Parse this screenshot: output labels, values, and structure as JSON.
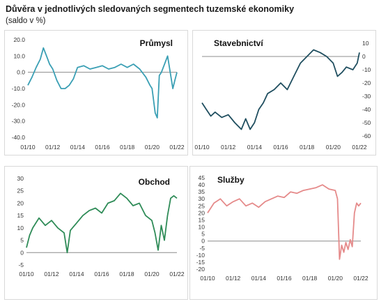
{
  "header": {
    "title": "Důvěra v jednotlivých sledovaných segmentech tuzemské ekonomiky",
    "subtitle": "(saldo v %)"
  },
  "chart_data": [
    {
      "type": "line",
      "title": "Průmysl",
      "color": "#3a9fb4",
      "x_ticks": [
        "01/10",
        "01/12",
        "01/14",
        "01/16",
        "01/18",
        "01/20",
        "01/22"
      ],
      "y_ticks": [
        "20.0",
        "10.0",
        "0.0",
        "-10.0",
        "-20.0",
        "-30.0",
        "-40.0"
      ],
      "ylim": [
        -40,
        20
      ],
      "xlim": [
        2010.0,
        2022.0
      ],
      "series": [
        {
          "x": [
            2010.0,
            2010.33,
            2010.67,
            2011.0,
            2011.25,
            2011.5,
            2011.75,
            2012.0,
            2012.33,
            2012.67,
            2013.0,
            2013.33,
            2013.67,
            2014.0,
            2014.5,
            2015.0,
            2015.5,
            2016.0,
            2016.5,
            2017.0,
            2017.5,
            2018.0,
            2018.5,
            2019.0,
            2019.5,
            2019.83,
            2020.0,
            2020.25,
            2020.42,
            2020.58,
            2020.75,
            2021.0,
            2021.25,
            2021.5,
            2021.67,
            2021.83,
            2022.0
          ],
          "y": [
            -8,
            -3,
            3,
            8,
            15,
            10,
            5,
            2,
            -5,
            -10,
            -10,
            -8,
            -4,
            3,
            4,
            2,
            3,
            4,
            2,
            3,
            5,
            3,
            5,
            2,
            -3,
            -8,
            -10,
            -25,
            -28,
            -2,
            0,
            5,
            10,
            -2,
            -10,
            -5,
            0
          ]
        }
      ]
    },
    {
      "type": "line",
      "title": "Stavebnictví",
      "color": "#1f4e5f",
      "x_ticks": [
        "01/10",
        "01/12",
        "01/14",
        "01/16",
        "01/18",
        "01/20",
        "01/22"
      ],
      "y_ticks": [
        "10",
        "0",
        "-10",
        "-20",
        "-30",
        "-40",
        "-50",
        "-60"
      ],
      "ylim": [
        -60,
        10
      ],
      "xlim": [
        2010.0,
        2022.0
      ],
      "series": [
        {
          "x": [
            2010.0,
            2010.33,
            2010.67,
            2011.0,
            2011.5,
            2012.0,
            2012.5,
            2013.0,
            2013.33,
            2013.67,
            2014.0,
            2014.33,
            2014.67,
            2015.0,
            2015.5,
            2016.0,
            2016.5,
            2017.0,
            2017.5,
            2018.0,
            2018.5,
            2019.0,
            2019.5,
            2020.0,
            2020.33,
            2020.67,
            2021.0,
            2021.5,
            2021.83,
            2022.0
          ],
          "y": [
            -35,
            -40,
            -45,
            -42,
            -46,
            -44,
            -50,
            -55,
            -47,
            -55,
            -50,
            -40,
            -35,
            -28,
            -25,
            -20,
            -25,
            -15,
            -5,
            0,
            5,
            3,
            0,
            -5,
            -15,
            -12,
            -8,
            -10,
            -5,
            3
          ]
        }
      ]
    },
    {
      "type": "line",
      "title": "Obchod",
      "color": "#2e8b57",
      "x_ticks": [
        "01/10",
        "01/12",
        "01/14",
        "01/16",
        "01/18",
        "01/20",
        "01/22"
      ],
      "y_ticks": [
        "30",
        "25",
        "20",
        "15",
        "10",
        "5",
        "0",
        "-5"
      ],
      "ylim": [
        -5,
        30
      ],
      "xlim": [
        2010.0,
        2022.0
      ],
      "series": [
        {
          "x": [
            2010.0,
            2010.25,
            2010.5,
            2011.0,
            2011.5,
            2012.0,
            2012.5,
            2013.0,
            2013.25,
            2013.5,
            2014.0,
            2014.5,
            2015.0,
            2015.5,
            2016.0,
            2016.5,
            2017.0,
            2017.5,
            2018.0,
            2018.5,
            2019.0,
            2019.5,
            2020.0,
            2020.25,
            2020.5,
            2020.75,
            2021.0,
            2021.25,
            2021.5,
            2021.75,
            2022.0
          ],
          "y": [
            2,
            7,
            10,
            14,
            11,
            13,
            10,
            8,
            0,
            9,
            12,
            15,
            17,
            18,
            16,
            20,
            21,
            24,
            22,
            19,
            20,
            15,
            13,
            8,
            1,
            11,
            5,
            15,
            22,
            23,
            22
          ]
        }
      ]
    },
    {
      "type": "line",
      "title": "Služby",
      "color": "#e58a8a",
      "x_ticks": [
        "01/10",
        "01/12",
        "01/14",
        "01/16",
        "01/18",
        "01/20",
        "01/22"
      ],
      "y_ticks": [
        "45",
        "40",
        "35",
        "30",
        "25",
        "20",
        "15",
        "10",
        "5",
        "0",
        "-5",
        "-10",
        "-15",
        "-20"
      ],
      "ylim": [
        -20,
        45
      ],
      "xlim": [
        2010.0,
        2022.0
      ],
      "series": [
        {
          "x": [
            2010.0,
            2010.5,
            2011.0,
            2011.5,
            2012.0,
            2012.5,
            2013.0,
            2013.5,
            2014.0,
            2014.5,
            2015.0,
            2015.5,
            2016.0,
            2016.5,
            2017.0,
            2017.5,
            2018.0,
            2018.5,
            2019.0,
            2019.5,
            2020.0,
            2020.17,
            2020.33,
            2020.5,
            2020.67,
            2020.83,
            2021.0,
            2021.17,
            2021.33,
            2021.5,
            2021.67,
            2021.83,
            2022.0
          ],
          "y": [
            20,
            27,
            30,
            25,
            28,
            30,
            25,
            27,
            24,
            28,
            30,
            32,
            31,
            35,
            34,
            36,
            37,
            38,
            40,
            37,
            36,
            30,
            -13,
            -3,
            -8,
            -1,
            -6,
            1,
            -4,
            20,
            27,
            25,
            27
          ]
        }
      ]
    }
  ]
}
